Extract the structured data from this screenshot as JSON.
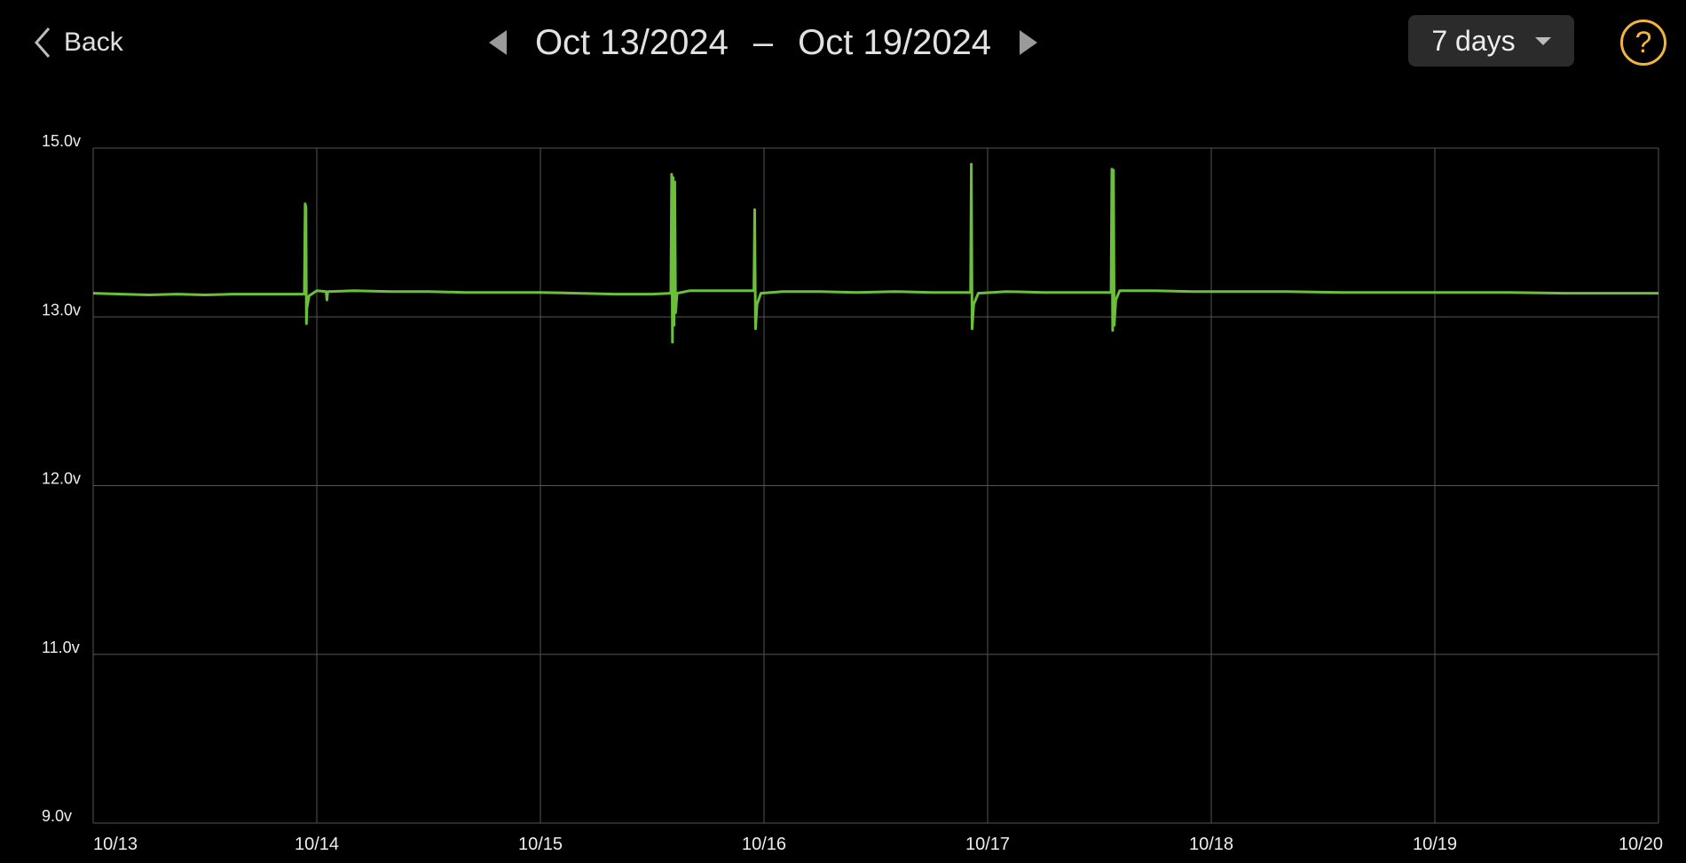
{
  "header": {
    "back_label": "Back",
    "start_date": "Oct 13/2024",
    "separator": "–",
    "end_date": "Oct 19/2024",
    "range_select": "7 days",
    "help_symbol": "?",
    "icons": {
      "back": "chevron-left-icon",
      "prev": "triangle-left-icon",
      "next": "triangle-right-icon",
      "dropdown": "caret-down-icon",
      "help": "question-circle-icon"
    }
  },
  "colors": {
    "line": "#6cbf3a",
    "grid": "#555555",
    "help": "#f2b544",
    "background": "#000000"
  },
  "chart_data": {
    "type": "line",
    "title": "",
    "xlabel": "",
    "ylabel": "",
    "grid": true,
    "y_ticks": [
      "15.0v",
      "13.0v",
      "12.0v",
      "11.0v",
      "9.0v"
    ],
    "y_tick_values": [
      15.0,
      13.0,
      12.0,
      11.0,
      9.0
    ],
    "x_ticks": [
      "10/13",
      "10/14",
      "10/15",
      "10/16",
      "10/17",
      "10/18",
      "10/19",
      "10/20"
    ],
    "xlim": [
      "2024-10-13T00:00",
      "2024-10-20T00:00"
    ],
    "ylim": [
      9.0,
      15.0
    ],
    "series": [
      {
        "points": [
          [
            "2024-10-13T00:00",
            13.28
          ],
          [
            "2024-10-13T03:00",
            13.27
          ],
          [
            "2024-10-13T06:00",
            13.26
          ],
          [
            "2024-10-13T09:00",
            13.27
          ],
          [
            "2024-10-13T12:00",
            13.26
          ],
          [
            "2024-10-13T15:00",
            13.27
          ],
          [
            "2024-10-13T18:00",
            13.27
          ],
          [
            "2024-10-13T22:40",
            13.27
          ],
          [
            "2024-10-13T22:45",
            14.34
          ],
          [
            "2024-10-13T22:50",
            14.3
          ],
          [
            "2024-10-13T22:53",
            12.96
          ],
          [
            "2024-10-13T22:56",
            13.1
          ],
          [
            "2024-10-13T23:10",
            13.25
          ],
          [
            "2024-10-14T00:00",
            13.31
          ],
          [
            "2024-10-14T01:00",
            13.3
          ],
          [
            "2024-10-14T01:05",
            13.2
          ],
          [
            "2024-10-14T01:10",
            13.3
          ],
          [
            "2024-10-14T04:00",
            13.31
          ],
          [
            "2024-10-14T08:00",
            13.3
          ],
          [
            "2024-10-14T12:00",
            13.3
          ],
          [
            "2024-10-14T16:00",
            13.29
          ],
          [
            "2024-10-14T20:00",
            13.29
          ],
          [
            "2024-10-15T00:00",
            13.29
          ],
          [
            "2024-10-15T04:00",
            13.28
          ],
          [
            "2024-10-15T08:00",
            13.27
          ],
          [
            "2024-10-15T12:00",
            13.27
          ],
          [
            "2024-10-15T14:00",
            13.28
          ],
          [
            "2024-10-15T14:05",
            14.69
          ],
          [
            "2024-10-15T14:10",
            12.85
          ],
          [
            "2024-10-15T14:15",
            14.65
          ],
          [
            "2024-10-15T14:20",
            12.95
          ],
          [
            "2024-10-15T14:25",
            14.6
          ],
          [
            "2024-10-15T14:30",
            13.05
          ],
          [
            "2024-10-15T14:40",
            13.28
          ],
          [
            "2024-10-15T16:00",
            13.31
          ],
          [
            "2024-10-15T18:00",
            13.31
          ],
          [
            "2024-10-15T20:00",
            13.31
          ],
          [
            "2024-10-15T22:55",
            13.31
          ],
          [
            "2024-10-15T23:00",
            14.27
          ],
          [
            "2024-10-15T23:05",
            12.93
          ],
          [
            "2024-10-15T23:15",
            13.15
          ],
          [
            "2024-10-15T23:40",
            13.28
          ],
          [
            "2024-10-16T02:00",
            13.3
          ],
          [
            "2024-10-16T06:00",
            13.3
          ],
          [
            "2024-10-16T10:00",
            13.29
          ],
          [
            "2024-10-16T14:00",
            13.3
          ],
          [
            "2024-10-16T18:00",
            13.29
          ],
          [
            "2024-10-16T22:10",
            13.29
          ],
          [
            "2024-10-16T22:15",
            14.81
          ],
          [
            "2024-10-16T22:20",
            12.93
          ],
          [
            "2024-10-16T22:30",
            13.15
          ],
          [
            "2024-10-16T23:00",
            13.28
          ],
          [
            "2024-10-17T02:00",
            13.3
          ],
          [
            "2024-10-17T06:00",
            13.29
          ],
          [
            "2024-10-17T10:00",
            13.29
          ],
          [
            "2024-10-17T13:15",
            13.29
          ],
          [
            "2024-10-17T13:20",
            14.75
          ],
          [
            "2024-10-17T13:25",
            12.92
          ],
          [
            "2024-10-17T13:30",
            14.74
          ],
          [
            "2024-10-17T13:35",
            12.95
          ],
          [
            "2024-10-17T13:45",
            13.2
          ],
          [
            "2024-10-17T14:10",
            13.31
          ],
          [
            "2024-10-17T18:00",
            13.31
          ],
          [
            "2024-10-17T22:00",
            13.3
          ],
          [
            "2024-10-18T02:00",
            13.3
          ],
          [
            "2024-10-18T08:00",
            13.3
          ],
          [
            "2024-10-18T14:00",
            13.29
          ],
          [
            "2024-10-18T20:00",
            13.29
          ],
          [
            "2024-10-19T02:00",
            13.29
          ],
          [
            "2024-10-19T08:00",
            13.29
          ],
          [
            "2024-10-19T14:00",
            13.28
          ],
          [
            "2024-10-19T20:00",
            13.28
          ],
          [
            "2024-10-20T00:00",
            13.28
          ]
        ]
      }
    ]
  }
}
